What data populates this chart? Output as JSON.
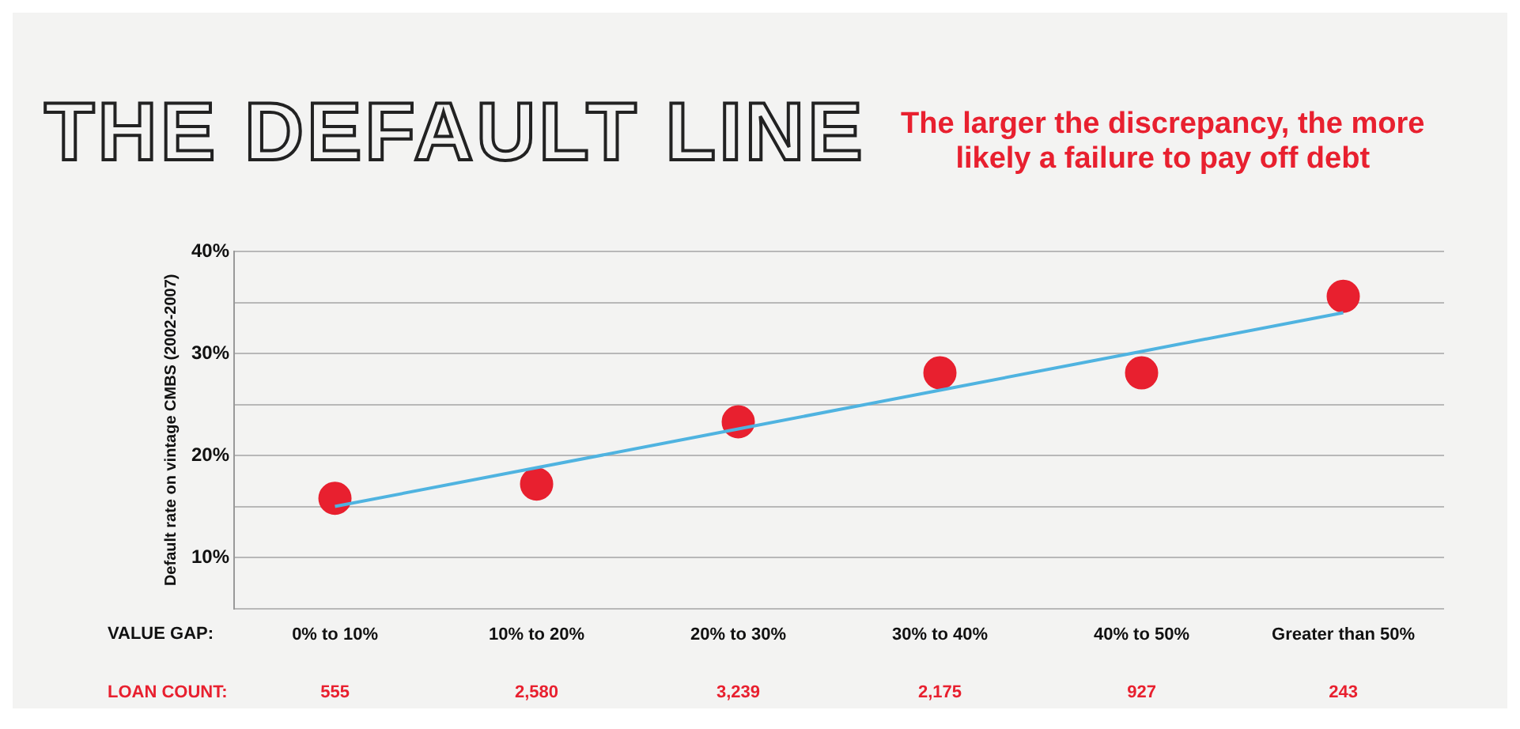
{
  "chart_data": {
    "type": "scatter",
    "title": "THE DEFAULT LINE",
    "subtitle": "The larger the discrepancy, the more likely a failure to pay off debt",
    "xlabel": "VALUE GAP:",
    "ylabel": "Default rate on vintage CMBS (2002-2007)",
    "categories": [
      "0% to 10%",
      "10% to 20%",
      "20% to 30%",
      "30% to 40%",
      "40% to 50%",
      "Greater than 50%"
    ],
    "series": [
      {
        "color": "#e8202f",
        "values": [
          15.8,
          17.2,
          23.3,
          28.1,
          28.1,
          35.6
        ]
      },
      {
        "type": "line",
        "color": "#4fb3e0",
        "marker": "none",
        "values": [
          15,
          18.8,
          22.6,
          26.4,
          30.2,
          34
        ]
      }
    ],
    "ylim": [
      5,
      40
    ],
    "yticks": [
      {
        "value": 5,
        "label": null
      },
      {
        "value": 10,
        "label": "10%"
      },
      {
        "value": 15,
        "label": null
      },
      {
        "value": 20,
        "label": "20%"
      },
      {
        "value": 25,
        "label": null
      },
      {
        "value": 30,
        "label": "30%"
      },
      {
        "value": 35,
        "label": null
      },
      {
        "value": 40,
        "label": "40%"
      }
    ],
    "grid": "y",
    "legend": false,
    "marker": "circle",
    "line_style": "solid",
    "annotations": [
      "LOAN COUNT:",
      "555",
      "2,580",
      "3,239",
      "2,175",
      "927",
      "243"
    ]
  }
}
